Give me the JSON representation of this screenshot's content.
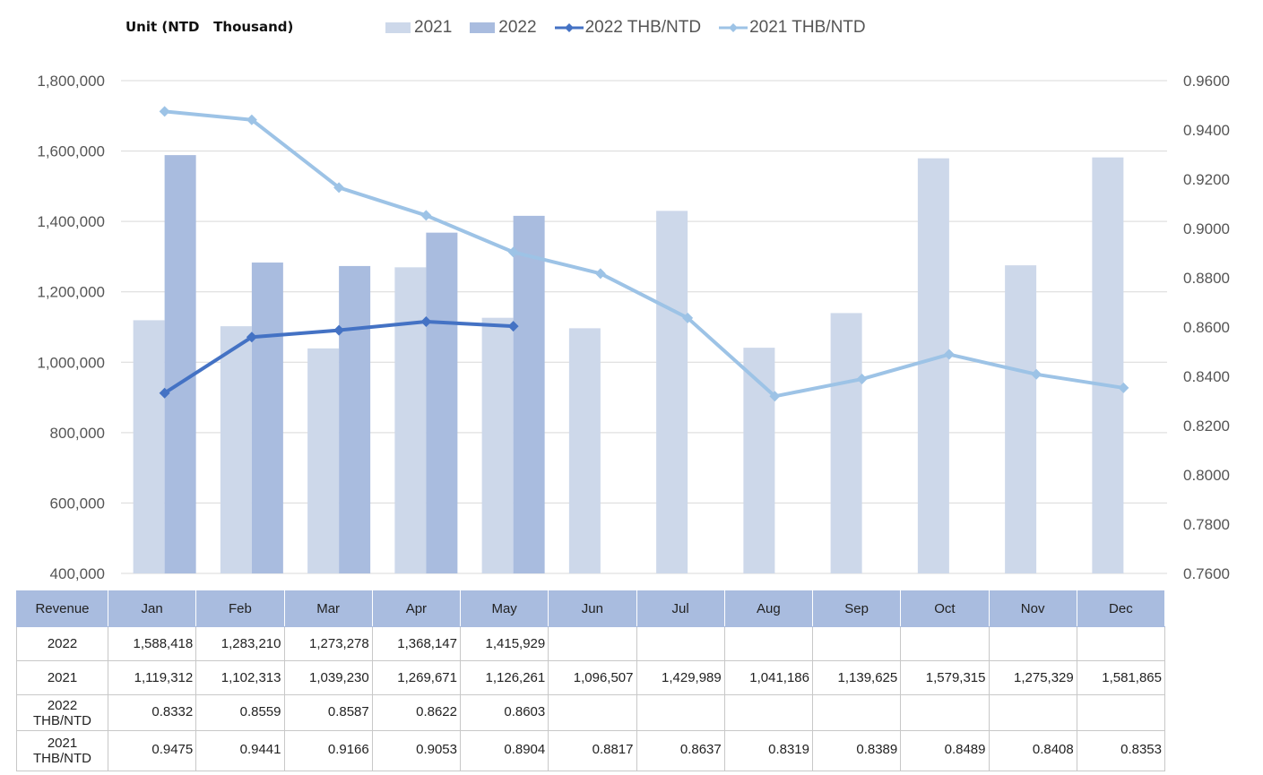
{
  "chart_data": {
    "type": "bar",
    "unit_label": "Unit (NTD   Thousand)",
    "categories": [
      "Jan",
      "Feb",
      "Mar",
      "Apr",
      "May",
      "Jun",
      "Jul",
      "Aug",
      "Sep",
      "Oct",
      "Nov",
      "Dec"
    ],
    "series": [
      {
        "name": "2021",
        "kind": "bar",
        "axis": "left",
        "color": "#cdd8ea",
        "values": [
          1119312,
          1102313,
          1039230,
          1269671,
          1126261,
          1096507,
          1429989,
          1041186,
          1139625,
          1579315,
          1275329,
          1581865
        ]
      },
      {
        "name": "2022",
        "kind": "bar",
        "axis": "left",
        "color": "#a9bcdf",
        "values": [
          1588418,
          1283210,
          1273278,
          1368147,
          1415929,
          null,
          null,
          null,
          null,
          null,
          null,
          null
        ]
      },
      {
        "name": "2022 THB/NTD",
        "kind": "line",
        "axis": "right",
        "color": "#4472c4",
        "values": [
          0.8332,
          0.8559,
          0.8587,
          0.8622,
          0.8603,
          null,
          null,
          null,
          null,
          null,
          null,
          null
        ]
      },
      {
        "name": "2021 THB/NTD",
        "kind": "line",
        "axis": "right",
        "color": "#9dc3e6",
        "values": [
          0.9475,
          0.9441,
          0.9166,
          0.9053,
          0.8904,
          0.8817,
          0.8637,
          0.8319,
          0.8389,
          0.8489,
          0.8408,
          0.8353
        ]
      }
    ],
    "y_left": {
      "min": 400000,
      "max": 1800000,
      "ticks": [
        "400,000",
        "600,000",
        "800,000",
        "1,000,000",
        "1,200,000",
        "1,400,000",
        "1,600,000",
        "1,800,000"
      ]
    },
    "y_right": {
      "min": 0.76,
      "max": 0.96,
      "ticks": [
        "0.7600",
        "0.7800",
        "0.8000",
        "0.8200",
        "0.8400",
        "0.8600",
        "0.8800",
        "0.9000",
        "0.9200",
        "0.9400",
        "0.9600"
      ]
    },
    "grid": true,
    "legend_position": "top",
    "table": {
      "header_label": "Revenue",
      "rows": [
        {
          "label": "2022",
          "cells": [
            "1,588,418",
            "1,283,210",
            "1,273,278",
            "1,368,147",
            "1,415,929",
            "",
            "",
            "",
            "",
            "",
            "",
            ""
          ]
        },
        {
          "label": "2021",
          "cells": [
            "1,119,312",
            "1,102,313",
            "1,039,230",
            "1,269,671",
            "1,126,261",
            "1,096,507",
            "1,429,989",
            "1,041,186",
            "1,139,625",
            "1,579,315",
            "1,275,329",
            "1,581,865"
          ]
        },
        {
          "label": "2022\nTHB/NTD",
          "cells": [
            "0.8332",
            "0.8559",
            "0.8587",
            "0.8622",
            "0.8603",
            "",
            "",
            "",
            "",
            "",
            "",
            ""
          ]
        },
        {
          "label": "2021\nTHB/NTD",
          "cells": [
            "0.9475",
            "0.9441",
            "0.9166",
            "0.9053",
            "0.8904",
            "0.8817",
            "0.8637",
            "0.8319",
            "0.8389",
            "0.8489",
            "0.8408",
            "0.8353"
          ]
        }
      ]
    }
  }
}
